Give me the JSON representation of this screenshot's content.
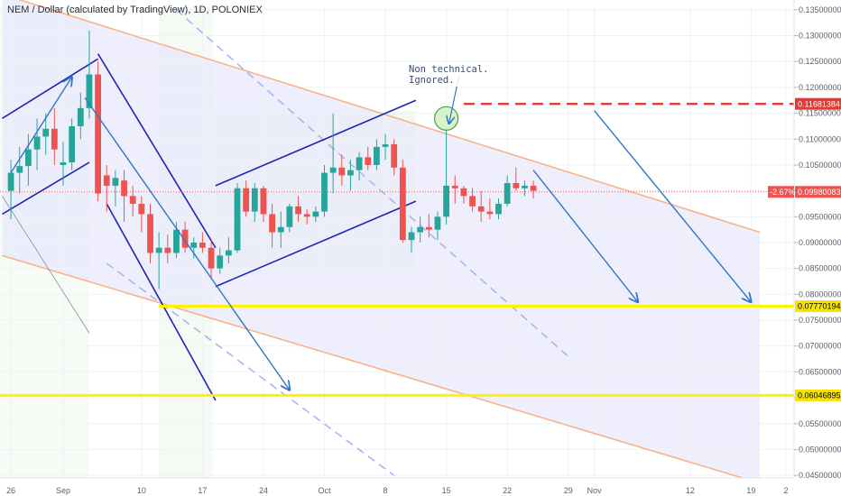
{
  "chart_data": {
    "type": "candlestick",
    "title": "NEM / Dollar (calculated by TradingView), 1D, POLONIEX",
    "ylim": [
      0.0445,
      0.1355
    ],
    "y_ticks": [
      "0.13500000",
      "0.13000000",
      "0.12500000",
      "0.12000000",
      "0.11500000",
      "0.11000000",
      "0.10500000",
      "0.10000000",
      "0.09500000",
      "0.09000000",
      "0.08500000",
      "0.08000000",
      "0.07500000",
      "0.07000000",
      "0.06500000",
      "0.06000000",
      "0.05500000",
      "0.05000000",
      "0.04500000"
    ],
    "y_tick_values": [
      0.135,
      0.13,
      0.125,
      0.12,
      0.115,
      0.11,
      0.105,
      0.1,
      0.095,
      0.09,
      0.085,
      0.08,
      0.075,
      0.07,
      0.065,
      0.06,
      0.055,
      0.05,
      0.045
    ],
    "x_ticks": [
      {
        "label": "26",
        "day": -6
      },
      {
        "label": "Sep",
        "day": 0
      },
      {
        "label": "10",
        "day": 9
      },
      {
        "label": "17",
        "day": 16
      },
      {
        "label": "24",
        "day": 23
      },
      {
        "label": "Oct",
        "day": 30
      },
      {
        "label": "8",
        "day": 37
      },
      {
        "label": "15",
        "day": 44
      },
      {
        "label": "22",
        "day": 51
      },
      {
        "label": "29",
        "day": 58
      },
      {
        "label": "Nov",
        "day": 61
      },
      {
        "label": "12",
        "day": 72
      },
      {
        "label": "19",
        "day": 79
      },
      {
        "label": "2",
        "day": 83
      }
    ],
    "candles": [
      {
        "d": -6,
        "o": 0.1,
        "h": 0.106,
        "l": 0.0945,
        "c": 0.1035
      },
      {
        "d": -5,
        "o": 0.1035,
        "h": 0.1085,
        "l": 0.0995,
        "c": 0.1048
      },
      {
        "d": -4,
        "o": 0.1048,
        "h": 0.111,
        "l": 0.101,
        "c": 0.108
      },
      {
        "d": -3,
        "o": 0.108,
        "h": 0.114,
        "l": 0.104,
        "c": 0.1105
      },
      {
        "d": -2,
        "o": 0.1105,
        "h": 0.115,
        "l": 0.107,
        "c": 0.112
      },
      {
        "d": -1,
        "o": 0.112,
        "h": 0.116,
        "l": 0.105,
        "c": 0.108
      },
      {
        "d": 0,
        "o": 0.105,
        "h": 0.1095,
        "l": 0.101,
        "c": 0.1055
      },
      {
        "d": 1,
        "o": 0.1055,
        "h": 0.114,
        "l": 0.104,
        "c": 0.1125
      },
      {
        "d": 2,
        "o": 0.1125,
        "h": 0.119,
        "l": 0.11,
        "c": 0.116
      },
      {
        "d": 3,
        "o": 0.116,
        "h": 0.131,
        "l": 0.114,
        "c": 0.1225
      },
      {
        "d": 4,
        "o": 0.1225,
        "h": 0.125,
        "l": 0.098,
        "c": 0.0995
      },
      {
        "d": 5,
        "o": 0.103,
        "h": 0.105,
        "l": 0.096,
        "c": 0.101
      },
      {
        "d": 6,
        "o": 0.101,
        "h": 0.104,
        "l": 0.097,
        "c": 0.1025
      },
      {
        "d": 7,
        "o": 0.102,
        "h": 0.104,
        "l": 0.094,
        "c": 0.099
      },
      {
        "d": 8,
        "o": 0.099,
        "h": 0.101,
        "l": 0.095,
        "c": 0.0975
      },
      {
        "d": 9,
        "o": 0.0975,
        "h": 0.099,
        "l": 0.092,
        "c": 0.0955
      },
      {
        "d": 10,
        "o": 0.0955,
        "h": 0.0975,
        "l": 0.086,
        "c": 0.088
      },
      {
        "d": 11,
        "o": 0.088,
        "h": 0.092,
        "l": 0.081,
        "c": 0.089
      },
      {
        "d": 12,
        "o": 0.089,
        "h": 0.0915,
        "l": 0.086,
        "c": 0.088
      },
      {
        "d": 13,
        "o": 0.088,
        "h": 0.094,
        "l": 0.087,
        "c": 0.0925
      },
      {
        "d": 14,
        "o": 0.0925,
        "h": 0.094,
        "l": 0.088,
        "c": 0.089
      },
      {
        "d": 15,
        "o": 0.089,
        "h": 0.091,
        "l": 0.087,
        "c": 0.09
      },
      {
        "d": 16,
        "o": 0.09,
        "h": 0.092,
        "l": 0.088,
        "c": 0.089
      },
      {
        "d": 17,
        "o": 0.089,
        "h": 0.0905,
        "l": 0.083,
        "c": 0.085
      },
      {
        "d": 18,
        "o": 0.085,
        "h": 0.089,
        "l": 0.084,
        "c": 0.0875
      },
      {
        "d": 19,
        "o": 0.0875,
        "h": 0.091,
        "l": 0.086,
        "c": 0.0885
      },
      {
        "d": 20,
        "o": 0.0885,
        "h": 0.1015,
        "l": 0.088,
        "c": 0.1005
      },
      {
        "d": 21,
        "o": 0.1005,
        "h": 0.102,
        "l": 0.095,
        "c": 0.096
      },
      {
        "d": 22,
        "o": 0.096,
        "h": 0.1015,
        "l": 0.094,
        "c": 0.1005
      },
      {
        "d": 23,
        "o": 0.1005,
        "h": 0.101,
        "l": 0.094,
        "c": 0.0955
      },
      {
        "d": 24,
        "o": 0.0955,
        "h": 0.0975,
        "l": 0.089,
        "c": 0.092
      },
      {
        "d": 25,
        "o": 0.092,
        "h": 0.096,
        "l": 0.089,
        "c": 0.093
      },
      {
        "d": 26,
        "o": 0.093,
        "h": 0.0975,
        "l": 0.092,
        "c": 0.097
      },
      {
        "d": 27,
        "o": 0.097,
        "h": 0.099,
        "l": 0.094,
        "c": 0.0955
      },
      {
        "d": 28,
        "o": 0.0955,
        "h": 0.0965,
        "l": 0.0935,
        "c": 0.095
      },
      {
        "d": 29,
        "o": 0.095,
        "h": 0.097,
        "l": 0.094,
        "c": 0.096
      },
      {
        "d": 30,
        "o": 0.096,
        "h": 0.105,
        "l": 0.095,
        "c": 0.1035
      },
      {
        "d": 31,
        "o": 0.1035,
        "h": 0.115,
        "l": 0.0995,
        "c": 0.1045
      },
      {
        "d": 32,
        "o": 0.1045,
        "h": 0.107,
        "l": 0.101,
        "c": 0.103
      },
      {
        "d": 33,
        "o": 0.103,
        "h": 0.106,
        "l": 0.1,
        "c": 0.104
      },
      {
        "d": 34,
        "o": 0.104,
        "h": 0.1075,
        "l": 0.102,
        "c": 0.1065
      },
      {
        "d": 35,
        "o": 0.1065,
        "h": 0.1085,
        "l": 0.104,
        "c": 0.105
      },
      {
        "d": 36,
        "o": 0.105,
        "h": 0.11,
        "l": 0.104,
        "c": 0.1085
      },
      {
        "d": 37,
        "o": 0.1085,
        "h": 0.111,
        "l": 0.106,
        "c": 0.109
      },
      {
        "d": 38,
        "o": 0.109,
        "h": 0.11,
        "l": 0.103,
        "c": 0.1045
      },
      {
        "d": 39,
        "o": 0.1045,
        "h": 0.106,
        "l": 0.09,
        "c": 0.0905
      },
      {
        "d": 40,
        "o": 0.0905,
        "h": 0.093,
        "l": 0.088,
        "c": 0.092
      },
      {
        "d": 41,
        "o": 0.092,
        "h": 0.095,
        "l": 0.09,
        "c": 0.093
      },
      {
        "d": 42,
        "o": 0.093,
        "h": 0.0955,
        "l": 0.091,
        "c": 0.0925
      },
      {
        "d": 43,
        "o": 0.0925,
        "h": 0.096,
        "l": 0.0905,
        "c": 0.095
      },
      {
        "d": 44,
        "o": 0.095,
        "h": 0.115,
        "l": 0.0935,
        "c": 0.101
      },
      {
        "d": 45,
        "o": 0.101,
        "h": 0.103,
        "l": 0.0975,
        "c": 0.1005
      },
      {
        "d": 46,
        "o": 0.1005,
        "h": 0.101,
        "l": 0.0975,
        "c": 0.099
      },
      {
        "d": 47,
        "o": 0.099,
        "h": 0.1005,
        "l": 0.096,
        "c": 0.097
      },
      {
        "d": 48,
        "o": 0.097,
        "h": 0.1,
        "l": 0.094,
        "c": 0.096
      },
      {
        "d": 49,
        "o": 0.096,
        "h": 0.0985,
        "l": 0.0945,
        "c": 0.0955
      },
      {
        "d": 50,
        "o": 0.0955,
        "h": 0.0985,
        "l": 0.0945,
        "c": 0.0975
      },
      {
        "d": 51,
        "o": 0.0975,
        "h": 0.103,
        "l": 0.097,
        "c": 0.1015
      },
      {
        "d": 52,
        "o": 0.1015,
        "h": 0.1045,
        "l": 0.1,
        "c": 0.1005
      },
      {
        "d": 53,
        "o": 0.1005,
        "h": 0.102,
        "l": 0.099,
        "c": 0.101
      },
      {
        "d": 54,
        "o": 0.101,
        "h": 0.102,
        "l": 0.0985,
        "c": 0.1
      }
    ],
    "annotation_text": [
      "Non technical.",
      "Ignored."
    ],
    "price_labels": [
      {
        "text": "0.11681384",
        "value": 0.11681384,
        "color": "#e53935"
      },
      {
        "text": "0.09980083",
        "value": 0.09980083,
        "color": "#ef5350",
        "pct": "-2.67%"
      },
      {
        "text": "0.07770194",
        "value": 0.07770194,
        "color": "#f5e400"
      },
      {
        "text": "0.06046895",
        "value": 0.06046895,
        "color": "#f5e400"
      }
    ],
    "colors": {
      "up": "#26a69a",
      "down": "#ef5350",
      "channel": "#1d24b8",
      "arrow": "#2f76c9",
      "support": "#fff200",
      "resistance": "#e53935"
    }
  }
}
